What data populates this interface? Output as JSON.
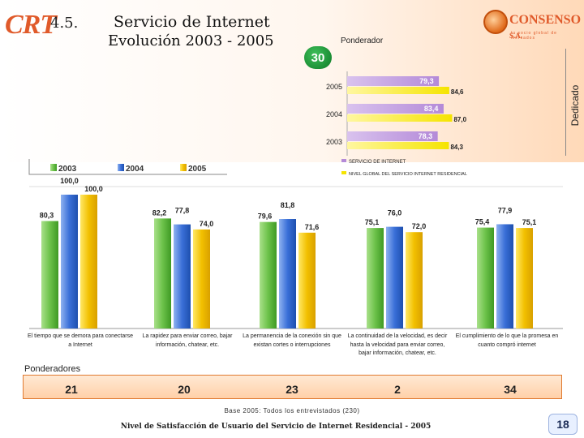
{
  "header": {
    "logo_text": "CRT",
    "section_number": "4.5.",
    "title_line1": "Servicio de Internet",
    "title_line2": "Evolución 2003 - 2005",
    "brand_name": "CONSENSO",
    "brand_suffix": "S.A.",
    "brand_tagline": "tu socio global de mercados",
    "side_label": "Dedicado"
  },
  "badge": {
    "value": "30"
  },
  "colors": {
    "lavender": "#b48ad8",
    "yellow": "#f5e400",
    "green": "#6cc24a",
    "blue": "#3a6fd8",
    "gold": "#f2c000"
  },
  "chart_data": [
    {
      "type": "bar",
      "orientation": "horizontal",
      "title": "Ponderador",
      "categories": [
        "2005",
        "2004",
        "2003"
      ],
      "series": [
        {
          "name": "SERVICIO DE INTERNET",
          "values": [
            79.3,
            83.4,
            78.3
          ],
          "labels": [
            "79,3",
            "83,4",
            "78,3"
          ]
        },
        {
          "name": "NIVEL GLOBAL DEL SERVICIO INTERNET RESIDENCIAL",
          "values": [
            84.6,
            87.0,
            84.3
          ],
          "labels": [
            "84,6",
            "87,0",
            "84,3"
          ]
        }
      ],
      "xlim": [
        0,
        100
      ]
    },
    {
      "type": "bar",
      "orientation": "vertical",
      "legend": [
        "2003",
        "2004",
        "2005"
      ],
      "categories": [
        "El tiempo que se demora para conectarse a Internet",
        "La rapidez para enviar correo, bajar información, chatear, etc.",
        "La permanencia de la conexión sin que existan cortes o interrupciones",
        "La continuidad de la velocidad, es decir hasta la velocidad para enviar correo, bajar información, chatear, etc.",
        "El cumplimiento de lo que la promesa en cuanto compró internet"
      ],
      "series": [
        {
          "name": "2003",
          "values": [
            80.3,
            82.2,
            79.6,
            75.1,
            75.4
          ],
          "labels": [
            "80,3",
            "82,2",
            "79,6",
            "75,1",
            "75,4"
          ]
        },
        {
          "name": "2004",
          "values": [
            100.0,
            77.8,
            81.8,
            76.0,
            77.9
          ],
          "labels": [
            "100,0",
            "77,8",
            "81,8",
            "76,0",
            "77,9"
          ]
        },
        {
          "name": "2005",
          "values": [
            100.0,
            74.0,
            71.6,
            72.0,
            75.1
          ],
          "labels": [
            "100,0",
            "74,0",
            "71,6",
            "72,0",
            "75,1"
          ]
        }
      ],
      "ylim": [
        0,
        100
      ]
    }
  ],
  "ponderadores": {
    "label": "Ponderadores",
    "values": [
      "21",
      "20",
      "23",
      "2",
      "34"
    ]
  },
  "footer": {
    "base_note": "Base 2005: Todos los entrevistados (230)",
    "title": "Nivel de Satisfacción de Usuario del Servicio de Internet Residencial - 2005",
    "page_number": "18"
  }
}
